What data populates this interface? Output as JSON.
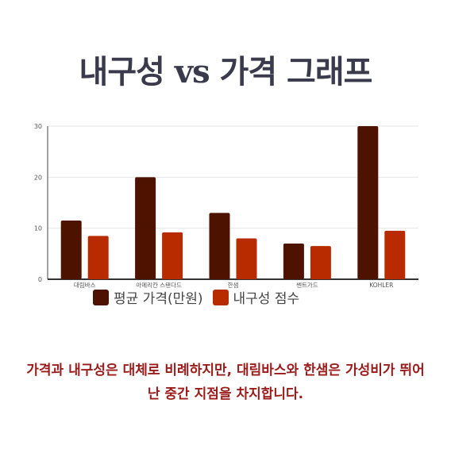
{
  "title": "내구성 vs 가격 그래프",
  "caption": "가격과 내구성은 대체로 비례하지만, 대림바스와 한샘은 가성비가 뛰어난 중간 지점을 차지합니다.",
  "colors": {
    "price": "#4e1200",
    "durability": "#b82a00",
    "title": "#3a3a4c",
    "caption": "#9b1b1b"
  },
  "chart_data": {
    "type": "bar",
    "categories": [
      "대림바스",
      "아메리칸 스탠다드",
      "한샘",
      "쎈트가드",
      "KOHLER"
    ],
    "series": [
      {
        "name": "평균 가격(만원)",
        "values": [
          11.5,
          20,
          13,
          7,
          30
        ]
      },
      {
        "name": "내구성 점수",
        "values": [
          8.5,
          9.2,
          8,
          6.5,
          9.5
        ]
      }
    ],
    "yticks": [
      "0",
      "10",
      "20",
      "30"
    ],
    "ylim": [
      0,
      30
    ],
    "grid": true,
    "legend": "bottom"
  }
}
